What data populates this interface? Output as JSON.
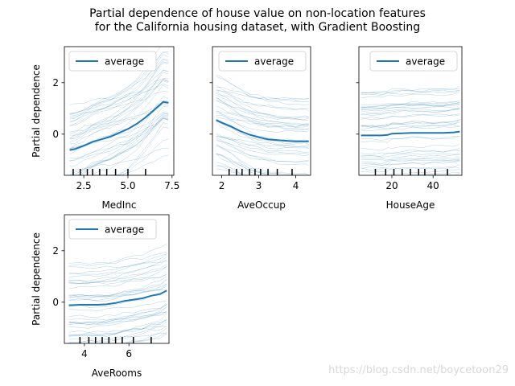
{
  "figure": {
    "title_line1": "Partial dependence of house value on non-location features",
    "title_line2": "for the California housing dataset, with Gradient Boosting",
    "watermark": "https://blog.csdn.net/boycetoon29"
  },
  "colors": {
    "average": "#1f77b4",
    "ice": "#1f77b4",
    "axes": "#000000",
    "background": "#ffffff"
  },
  "chart_data": [
    {
      "type": "line",
      "feature": "MedInc",
      "xlabel": "MedInc",
      "ylabel": "Partial dependence",
      "xlim": [
        1.4,
        7.6
      ],
      "ylim": [
        -1.6,
        3.4
      ],
      "xticks": [
        2.5,
        5.0,
        7.5
      ],
      "xtick_labels": [
        "2.5",
        "5.0",
        "7.5"
      ],
      "yticks": [
        0,
        2
      ],
      "ytick_labels": [
        "0",
        "2"
      ],
      "legend": "upper-left",
      "series": [
        {
          "name": "average",
          "x": [
            1.7,
            2.0,
            2.5,
            3.0,
            3.5,
            4.0,
            4.5,
            5.0,
            5.5,
            6.0,
            6.5,
            7.0,
            7.3
          ],
          "y": [
            -0.62,
            -0.58,
            -0.45,
            -0.3,
            -0.2,
            -0.1,
            0.05,
            0.2,
            0.4,
            0.65,
            0.95,
            1.25,
            1.22
          ]
        }
      ],
      "deciles": [
        1.9,
        2.3,
        2.7,
        3.0,
        3.4,
        3.8,
        4.3,
        5.0,
        6.0
      ]
    },
    {
      "type": "line",
      "feature": "AveOccup",
      "xlabel": "AveOccup",
      "ylabel": "",
      "xlim": [
        1.75,
        4.4
      ],
      "ylim": [
        -1.6,
        3.4
      ],
      "xticks": [
        2,
        3,
        4
      ],
      "xtick_labels": [
        "2",
        "3",
        "4"
      ],
      "yticks": [
        0,
        2
      ],
      "ytick_labels": [],
      "legend": "upper-right",
      "series": [
        {
          "name": "average",
          "x": [
            1.85,
            2.0,
            2.25,
            2.5,
            2.75,
            3.0,
            3.25,
            3.5,
            3.75,
            4.0,
            4.25,
            4.35
          ],
          "y": [
            0.55,
            0.45,
            0.3,
            0.12,
            -0.02,
            -0.12,
            -0.2,
            -0.23,
            -0.26,
            -0.28,
            -0.28,
            -0.28
          ]
        }
      ],
      "deciles": [
        2.2,
        2.4,
        2.55,
        2.75,
        2.9,
        3.05,
        3.25,
        3.5,
        3.9
      ]
    },
    {
      "type": "line",
      "feature": "HouseAge",
      "xlabel": "HouseAge",
      "ylabel": "",
      "xlim": [
        4,
        54
      ],
      "ylim": [
        -1.6,
        3.4
      ],
      "xticks": [
        20,
        40
      ],
      "xtick_labels": [
        "20",
        "40"
      ],
      "yticks": [
        0,
        2
      ],
      "ytick_labels": [],
      "legend": "upper-right",
      "series": [
        {
          "name": "average",
          "x": [
            5,
            10,
            15,
            18,
            20,
            25,
            30,
            35,
            40,
            45,
            50,
            53
          ],
          "y": [
            -0.05,
            -0.05,
            -0.05,
            -0.03,
            0.02,
            0.03,
            0.05,
            0.05,
            0.05,
            0.05,
            0.07,
            0.1
          ]
        }
      ],
      "deciles": [
        12,
        17,
        21,
        25,
        29,
        33,
        36,
        41,
        47
      ]
    },
    {
      "type": "line",
      "feature": "AveRooms",
      "xlabel": "AveRooms",
      "ylabel": "Partial dependence",
      "xlim": [
        3.1,
        7.8
      ],
      "ylim": [
        -1.6,
        3.4
      ],
      "xticks": [
        4,
        6
      ],
      "xtick_labels": [
        "4",
        "6"
      ],
      "yticks": [
        0,
        2
      ],
      "ytick_labels": [
        "0",
        "2"
      ],
      "legend": "upper-left",
      "series": [
        {
          "name": "average",
          "x": [
            3.3,
            3.8,
            4.2,
            4.6,
            5.0,
            5.4,
            5.8,
            6.2,
            6.6,
            7.0,
            7.4,
            7.7
          ],
          "y": [
            -0.12,
            -0.1,
            -0.1,
            -0.1,
            -0.08,
            -0.03,
            0.05,
            0.1,
            0.15,
            0.25,
            0.32,
            0.45
          ]
        }
      ],
      "deciles": [
        3.8,
        4.2,
        4.5,
        4.8,
        5.1,
        5.4,
        5.7,
        6.2,
        7.0
      ]
    }
  ]
}
